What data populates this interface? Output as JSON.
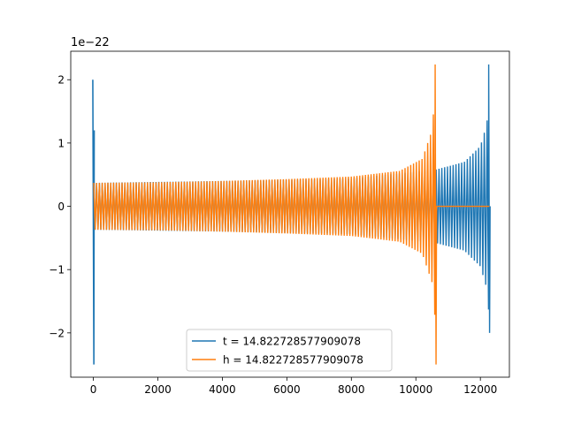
{
  "chart_data": {
    "type": "line",
    "title": "",
    "xlabel": "",
    "ylabel": "",
    "y_offset_label": "1e−22",
    "xlim": [
      -700,
      12900
    ],
    "ylim": [
      -2.7,
      2.45
    ],
    "xticks": [
      0,
      2000,
      4000,
      6000,
      8000,
      10000,
      12000
    ],
    "xtick_labels": [
      "0",
      "2000",
      "4000",
      "6000",
      "8000",
      "10000",
      "12000"
    ],
    "yticks": [
      -2,
      -1,
      0,
      1,
      2
    ],
    "ytick_labels": [
      "−2",
      "−1",
      "0",
      "1",
      "2"
    ],
    "grid": false,
    "legend_position": "lower-center",
    "series": [
      {
        "name": "t = 14.822728577909078",
        "color": "#1f77b4",
        "chirp_end_x": 12280,
        "spike_at_start": {
          "x": 0,
          "max": 2.0,
          "min": -2.5
        },
        "envelope": [
          [
            0,
            0.37
          ],
          [
            4000,
            0.4
          ],
          [
            8000,
            0.44
          ],
          [
            10620,
            0.58
          ],
          [
            11500,
            0.7
          ],
          [
            12000,
            0.95
          ],
          [
            12200,
            1.3
          ],
          [
            12280,
            1.8
          ]
        ],
        "peak_max": 2.24,
        "peak_min": -2.0
      },
      {
        "name": "h = 14.822728577909078",
        "color": "#ff7f0e",
        "chirp_end_x": 10620,
        "envelope": [
          [
            0,
            0.37
          ],
          [
            2000,
            0.38
          ],
          [
            4000,
            0.4
          ],
          [
            6000,
            0.43
          ],
          [
            8000,
            0.47
          ],
          [
            9500,
            0.56
          ],
          [
            10200,
            0.75
          ],
          [
            10500,
            1.2
          ],
          [
            10600,
            1.8
          ]
        ],
        "peak_max": 2.24,
        "peak_min": -2.5,
        "post_chirp_value": 0,
        "post_chirp_end_x": 12280
      }
    ]
  }
}
